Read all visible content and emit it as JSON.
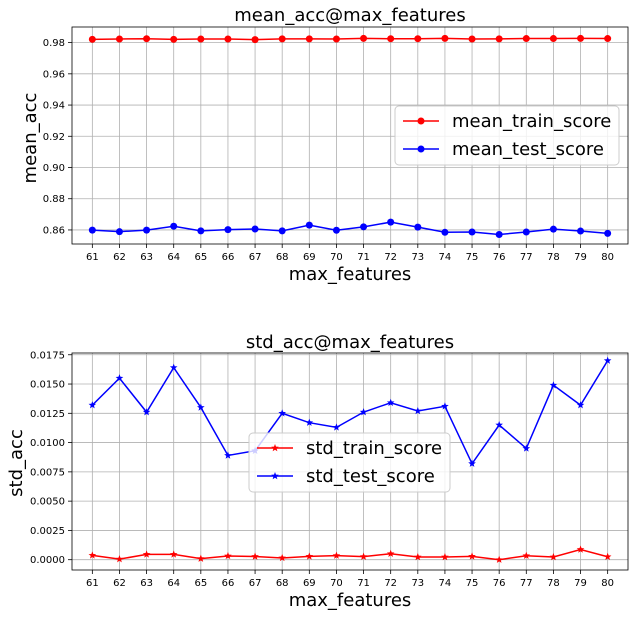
{
  "chart_data": [
    {
      "type": "line",
      "title": "mean_acc@max_features",
      "xlabel": "max_features",
      "ylabel": "mean_acc",
      "categories": [
        "61",
        "62",
        "63",
        "64",
        "65",
        "66",
        "67",
        "68",
        "69",
        "70",
        "71",
        "72",
        "73",
        "74",
        "75",
        "76",
        "77",
        "78",
        "79",
        "80"
      ],
      "ylim": [
        0.851,
        0.99
      ],
      "yticks": [
        "0.98",
        "0.96",
        "0.94",
        "0.92",
        "0.90",
        "0.88",
        "0.86"
      ],
      "ytick_values": [
        0.98,
        0.96,
        0.94,
        0.92,
        0.9,
        0.88,
        0.86
      ],
      "grid": true,
      "legend_position": "right",
      "series": [
        {
          "name": "mean_train_score",
          "color": "#ff0000",
          "marker": "circle",
          "values": [
            0.9821,
            0.9823,
            0.9825,
            0.9821,
            0.9823,
            0.9823,
            0.9819,
            0.9824,
            0.9824,
            0.9823,
            0.9827,
            0.9825,
            0.9825,
            0.9827,
            0.9823,
            0.9824,
            0.9826,
            0.9826,
            0.9827,
            0.9826
          ]
        },
        {
          "name": "mean_test_score",
          "color": "#0000ff",
          "marker": "circle",
          "values": [
            0.8599,
            0.8589,
            0.8599,
            0.8624,
            0.8594,
            0.8602,
            0.8606,
            0.8594,
            0.8631,
            0.8598,
            0.862,
            0.865,
            0.8618,
            0.8585,
            0.8587,
            0.8571,
            0.8587,
            0.8605,
            0.8593,
            0.8578
          ]
        }
      ]
    },
    {
      "type": "line",
      "title": "std_acc@max_features",
      "xlabel": "max_features",
      "ylabel": "std_acc",
      "categories": [
        "61",
        "62",
        "63",
        "64",
        "65",
        "66",
        "67",
        "68",
        "69",
        "70",
        "71",
        "72",
        "73",
        "74",
        "75",
        "76",
        "77",
        "78",
        "79",
        "80"
      ],
      "ylim": [
        -0.00088,
        0.01765
      ],
      "yticks": [
        "0.0175",
        "0.0150",
        "0.0125",
        "0.0100",
        "0.0075",
        "0.0050",
        "0.0025",
        "0.0000"
      ],
      "ytick_values": [
        0.0175,
        0.015,
        0.0125,
        0.01,
        0.0075,
        0.005,
        0.0025,
        0.0
      ],
      "grid": true,
      "legend_position": "center",
      "series": [
        {
          "name": "std_train_score",
          "color": "#ff0000",
          "marker": "star",
          "values": [
            0.00037,
            5e-05,
            0.00045,
            0.00045,
            9e-05,
            0.00032,
            0.00027,
            0.00015,
            0.00028,
            0.00035,
            0.00026,
            0.00051,
            0.00023,
            0.00023,
            0.00028,
            0.0,
            0.00034,
            0.00023,
            0.00087,
            0.00025
          ]
        },
        {
          "name": "std_test_score",
          "color": "#0000ff",
          "marker": "star",
          "values": [
            0.0132,
            0.0155,
            0.0126,
            0.0164,
            0.013,
            0.0089,
            0.0093,
            0.0125,
            0.0117,
            0.0113,
            0.0126,
            0.0134,
            0.0127,
            0.0131,
            0.0082,
            0.0115,
            0.0095,
            0.0149,
            0.0132,
            0.017
          ]
        }
      ]
    }
  ]
}
